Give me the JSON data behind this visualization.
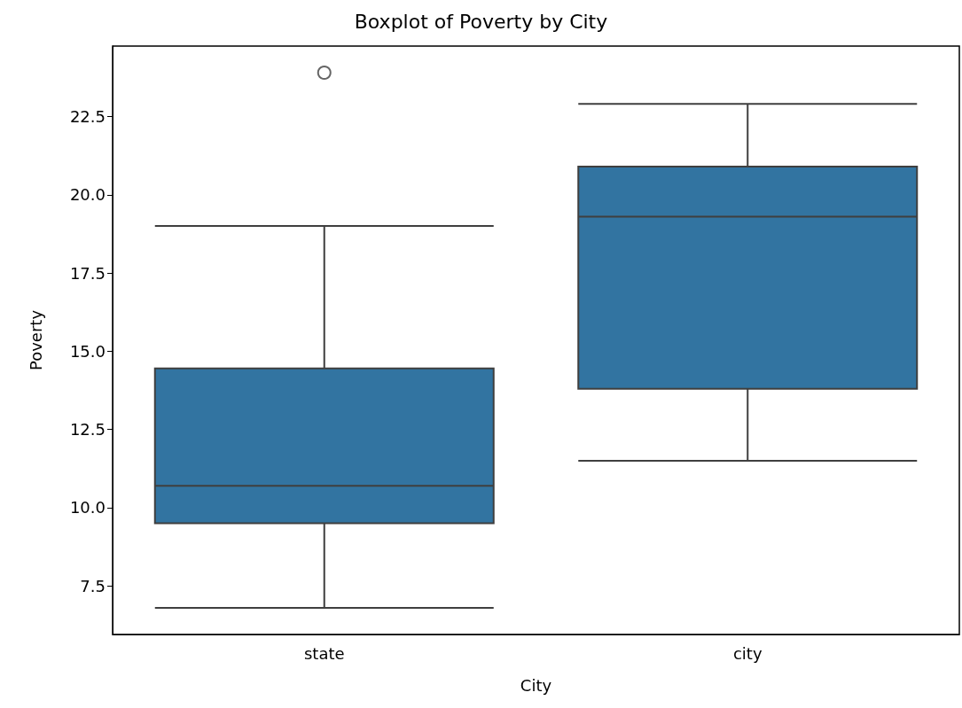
{
  "chart_data": {
    "type": "box",
    "title": "Boxplot of Poverty by City",
    "xlabel": "City",
    "ylabel": "Poverty",
    "categories": [
      "state",
      "city"
    ],
    "color": "#3274a1",
    "marker": "circle",
    "boxes": [
      {
        "low": 6.8,
        "q1": 9.5,
        "median": 10.7,
        "q3": 14.45,
        "high": 19.0,
        "outliers": [
          23.9
        ]
      },
      {
        "low": 11.5,
        "q1": 13.8,
        "median": 19.3,
        "q3": 20.9,
        "high": 22.9
      }
    ],
    "ylim": [
      5.95,
      24.75
    ],
    "yticks": [
      {
        "value": 7.5,
        "label": "7.5"
      },
      {
        "value": 10,
        "label": "10.0"
      },
      {
        "value": 12.5,
        "label": "12.5"
      },
      {
        "value": 15,
        "label": "15.0"
      },
      {
        "value": 17.5,
        "label": "17.5"
      },
      {
        "value": 20,
        "label": "20.0"
      },
      {
        "value": 22.5,
        "label": "22.5"
      }
    ]
  }
}
